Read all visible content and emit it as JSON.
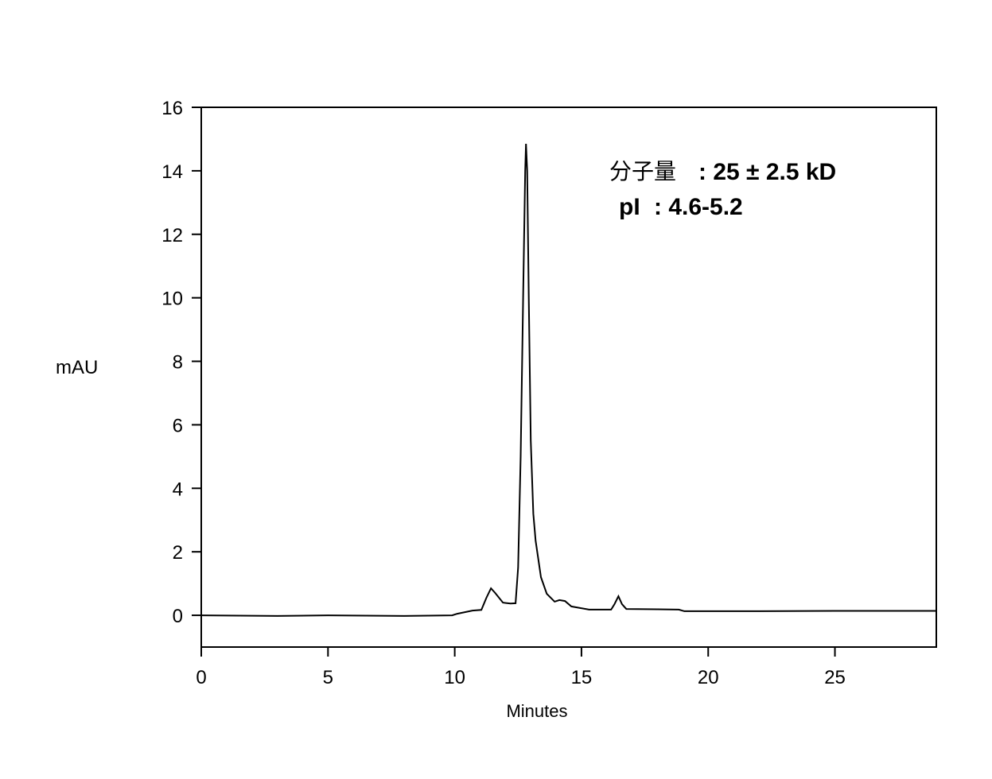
{
  "chart_data": {
    "type": "line",
    "title": "",
    "xlabel": "Minutes",
    "ylabel": "mAU",
    "xlim": [
      0,
      29
    ],
    "ylim": [
      -1,
      16
    ],
    "xticks": [
      0,
      5,
      10,
      15,
      20,
      25
    ],
    "yticks": [
      0,
      2,
      4,
      6,
      8,
      10,
      12,
      14,
      16
    ],
    "grid": false,
    "legend": "none",
    "line_color": "#000000",
    "annotations": [
      {
        "label": "分子量",
        "text": ": 25 ± 2.5 kD"
      },
      {
        "label": "pI",
        "text": ": 4.6-5.2"
      }
    ],
    "series": [
      {
        "x": [
          0,
          3,
          5,
          8,
          9.9,
          10.1,
          10.7,
          11.05,
          11.25,
          11.43,
          11.6,
          11.9,
          12.2,
          12.4,
          12.5,
          12.6,
          12.7,
          12.78,
          12.81,
          12.86,
          12.92,
          13.0,
          13.1,
          13.19,
          13.4,
          13.63,
          13.94,
          14.13,
          14.35,
          14.6,
          15.3,
          16.17,
          16.3,
          16.46,
          16.6,
          16.77,
          18.0,
          18.84,
          19.06,
          22,
          25,
          29
        ],
        "y": [
          0,
          -0.02,
          0,
          -0.02,
          0.0,
          0.05,
          0.15,
          0.17,
          0.55,
          0.85,
          0.7,
          0.4,
          0.37,
          0.38,
          1.5,
          5,
          10,
          14,
          14.85,
          14,
          10,
          5.5,
          3.2,
          2.35,
          1.2,
          0.68,
          0.43,
          0.48,
          0.45,
          0.28,
          0.18,
          0.18,
          0.35,
          0.6,
          0.35,
          0.2,
          0.19,
          0.18,
          0.13,
          0.13,
          0.14,
          0.14
        ]
      }
    ]
  }
}
